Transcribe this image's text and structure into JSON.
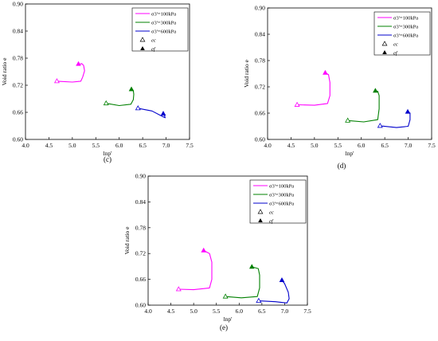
{
  "figure": {
    "legend_labels": [
      "σ3'=100kPa",
      "σ3'=300kPa",
      "σ3'=600kPa",
      "ec",
      "ef"
    ],
    "series_colors": [
      "#ff00ff",
      "#008000",
      "#0000cc"
    ]
  },
  "chart_data": [
    {
      "type": "line",
      "panel_label": "(c)",
      "xlabel": "lnp'",
      "ylabel": "Void ratio e",
      "xlim": [
        4.0,
        7.5
      ],
      "ylim": [
        0.6,
        0.9
      ],
      "xticks": [
        "4.0",
        "4.5",
        "5.0",
        "5.5",
        "6.0",
        "6.5",
        "7.0",
        "7.5"
      ],
      "yticks": [
        "0.60",
        "0.66",
        "0.72",
        "0.78",
        "0.84",
        "0.90"
      ],
      "grid": false,
      "legend_position": "top-right",
      "series": [
        {
          "name": "σ3'=100kPa",
          "color": "#ff00ff",
          "x": [
            4.67,
            5.0,
            5.18,
            5.22,
            5.26,
            5.24,
            5.2,
            5.15
          ],
          "y": [
            0.729,
            0.727,
            0.729,
            0.738,
            0.752,
            0.764,
            0.768,
            0.766
          ],
          "ec": [
            4.67,
            0.729
          ],
          "ef": [
            5.13,
            0.767
          ]
        },
        {
          "name": "σ3'=300kPa",
          "color": "#008000",
          "x": [
            5.72,
            6.0,
            6.25,
            6.3,
            6.31,
            6.3,
            6.27
          ],
          "y": [
            0.68,
            0.675,
            0.678,
            0.688,
            0.7,
            0.708,
            0.711
          ],
          "ec": [
            5.72,
            0.68
          ],
          "ef": [
            6.26,
            0.711
          ]
        },
        {
          "name": "σ3'=600kPa",
          "color": "#0000cc",
          "x": [
            6.4,
            6.7,
            6.92,
            6.98,
            6.97,
            6.94
          ],
          "y": [
            0.669,
            0.663,
            0.651,
            0.648,
            0.652,
            0.657
          ],
          "ec": [
            6.4,
            0.669
          ],
          "ef": [
            6.94,
            0.657
          ]
        }
      ]
    },
    {
      "type": "line",
      "panel_label": "(d)",
      "xlabel": "lnp'",
      "ylabel": "Void ratio e",
      "xlim": [
        4.0,
        7.5
      ],
      "ylim": [
        0.6,
        0.9
      ],
      "xticks": [
        "4.0",
        "4.5",
        "5.0",
        "5.5",
        "6.0",
        "6.5",
        "7.0",
        "7.5"
      ],
      "yticks": [
        "0.60",
        "0.66",
        "0.72",
        "0.78",
        "0.84",
        "0.90"
      ],
      "grid": false,
      "legend_position": "top-right",
      "series": [
        {
          "name": "σ3'=100kPa",
          "color": "#ff00ff",
          "x": [
            4.63,
            5.0,
            5.28,
            5.33,
            5.33,
            5.3,
            5.23
          ],
          "y": [
            0.679,
            0.678,
            0.682,
            0.7,
            0.73,
            0.748,
            0.752
          ],
          "ec": [
            4.63,
            0.679
          ],
          "ef": [
            5.23,
            0.752
          ]
        },
        {
          "name": "σ3'=300kPa",
          "color": "#008000",
          "x": [
            5.71,
            6.05,
            6.35,
            6.38,
            6.38,
            6.35,
            6.3
          ],
          "y": [
            0.643,
            0.64,
            0.645,
            0.67,
            0.7,
            0.71,
            0.711
          ],
          "ec": [
            5.71,
            0.643
          ],
          "ef": [
            6.3,
            0.711
          ]
        },
        {
          "name": "σ3'=600kPa",
          "color": "#0000cc",
          "x": [
            6.4,
            6.75,
            7.0,
            7.04,
            7.04,
            7.0
          ],
          "y": [
            0.631,
            0.627,
            0.63,
            0.645,
            0.66,
            0.663
          ],
          "ec": [
            6.4,
            0.631
          ],
          "ef": [
            6.99,
            0.663
          ]
        }
      ]
    },
    {
      "type": "line",
      "panel_label": "(e)",
      "xlabel": "lnp'",
      "ylabel": "Void ratio e",
      "xlim": [
        4.0,
        7.5
      ],
      "ylim": [
        0.6,
        0.9
      ],
      "xticks": [
        "4.0",
        "4.5",
        "5.0",
        "5.5",
        "6.0",
        "6.5",
        "7.0",
        "7.5"
      ],
      "yticks": [
        "0.60",
        "0.66",
        "0.72",
        "0.78",
        "0.84",
        "0.90"
      ],
      "grid": false,
      "legend_position": "top-right",
      "series": [
        {
          "name": "σ3'=100kPa",
          "color": "#ff00ff",
          "x": [
            4.67,
            5.0,
            5.35,
            5.4,
            5.4,
            5.35,
            5.22
          ],
          "y": [
            0.637,
            0.636,
            0.64,
            0.66,
            0.7,
            0.72,
            0.727
          ],
          "ec": [
            4.67,
            0.637
          ],
          "ef": [
            5.22,
            0.727
          ]
        },
        {
          "name": "σ3'=300kPa",
          "color": "#008000",
          "x": [
            5.7,
            6.05,
            6.4,
            6.45,
            6.45,
            6.42,
            6.28
          ],
          "y": [
            0.62,
            0.617,
            0.62,
            0.64,
            0.67,
            0.685,
            0.689
          ],
          "ec": [
            5.7,
            0.62
          ],
          "ef": [
            6.28,
            0.689
          ]
        },
        {
          "name": "σ3'=600kPa",
          "color": "#0000cc",
          "x": [
            6.43,
            6.8,
            7.05,
            7.1,
            7.08,
            7.0,
            6.94
          ],
          "y": [
            0.61,
            0.608,
            0.605,
            0.615,
            0.63,
            0.65,
            0.658
          ],
          "ec": [
            6.43,
            0.61
          ],
          "ef": [
            6.94,
            0.658
          ]
        }
      ]
    }
  ]
}
